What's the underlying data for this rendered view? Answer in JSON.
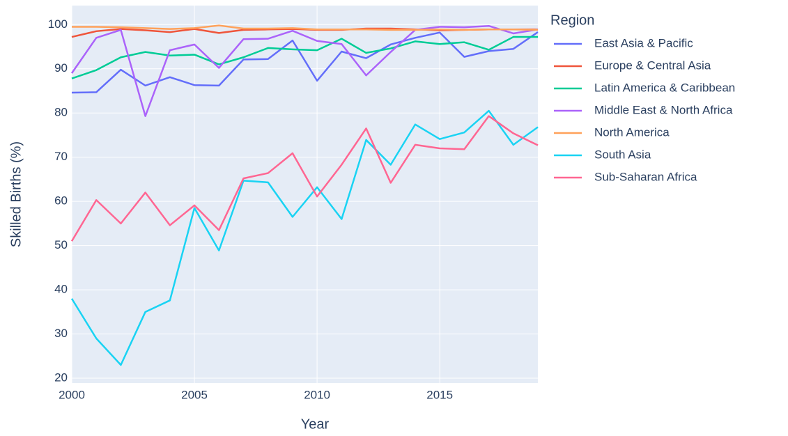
{
  "chart_data": {
    "type": "line",
    "x_label": "Year",
    "y_label": "Skilled Births (%)",
    "legend_title": "Region",
    "x": [
      2000,
      2001,
      2002,
      2003,
      2004,
      2005,
      2006,
      2007,
      2008,
      2009,
      2010,
      2011,
      2012,
      2013,
      2014,
      2015,
      2016,
      2017,
      2018,
      2019
    ],
    "series": [
      {
        "name": "East Asia & Pacific",
        "color": "#636efa",
        "values": [
          84.6,
          84.7,
          89.8,
          86.2,
          88.1,
          86.3,
          86.2,
          92.1,
          92.2,
          96.4,
          87.3,
          93.9,
          92.4,
          95.5,
          97,
          98.2,
          92.7,
          94,
          94.5,
          98.3
        ]
      },
      {
        "name": "Europe & Central Asia",
        "color": "#EF553B",
        "values": [
          97.2,
          98.5,
          99,
          98.7,
          98.3,
          99,
          98.1,
          98.8,
          98.9,
          99,
          98.8,
          98.8,
          99.1,
          99.1,
          98.9,
          98.7,
          98.8,
          98.9,
          98.9,
          98.9
        ]
      },
      {
        "name": "Latin America & Caribbean",
        "color": "#00cc96",
        "values": [
          87.8,
          89.7,
          92.6,
          93.8,
          93,
          93.2,
          91,
          92.6,
          94.7,
          94.4,
          94.2,
          96.8,
          93.6,
          94.6,
          96.2,
          95.6,
          96,
          94.3,
          97.2,
          97.2
        ]
      },
      {
        "name": "Middle East & North Africa",
        "color": "#ab63fa",
        "values": [
          89,
          97,
          98.8,
          79.3,
          94.2,
          95.5,
          90.2,
          96.7,
          96.8,
          98.6,
          96.3,
          95.6,
          88.5,
          93.8,
          98.8,
          99.5,
          99.4,
          99.7,
          98,
          98.9
        ]
      },
      {
        "name": "North America",
        "color": "#FFA15A",
        "values": [
          99.5,
          99.5,
          99.4,
          99.2,
          99,
          99.2,
          99.8,
          99.1,
          99.1,
          99.2,
          98.9,
          98.9,
          98.9,
          98.8,
          98.8,
          98.9,
          98.8,
          98.9,
          98.9,
          98.8
        ]
      },
      {
        "name": "South Asia",
        "color": "#19d3f3",
        "values": [
          38,
          29,
          23,
          35,
          37.6,
          58.5,
          48.9,
          64.7,
          64.3,
          56.5,
          63.2,
          56,
          73.9,
          68.3,
          77.4,
          74.1,
          75.6,
          80.5,
          72.8,
          76.8
        ]
      },
      {
        "name": "Sub-Saharan Africa",
        "color": "#FF6692",
        "values": [
          51,
          60.3,
          55,
          62,
          54.6,
          59.1,
          53.5,
          65.2,
          66.4,
          70.9,
          61.1,
          68.3,
          76.5,
          64.2,
          72.8,
          72,
          71.8,
          79.3,
          75.4,
          72.7
        ]
      }
    ],
    "xlim": [
      2000,
      2019
    ],
    "xticks": [
      2000,
      2005,
      2010,
      2015
    ],
    "ylim": [
      18.9,
      104.3
    ],
    "yticks": [
      20,
      30,
      40,
      50,
      60,
      70,
      80,
      90,
      100
    ],
    "grid": true
  }
}
